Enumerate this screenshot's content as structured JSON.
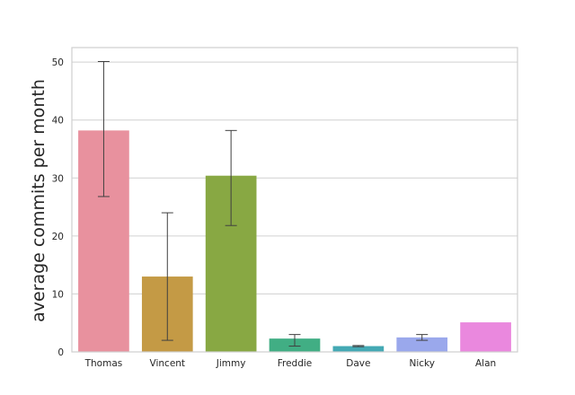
{
  "chart_data": {
    "type": "bar",
    "title": "",
    "xlabel": "",
    "ylabel": "average commits per month",
    "categories": [
      "Thomas",
      "Vincent",
      "Jimmy",
      "Freddie",
      "Dave",
      "Nicky",
      "Alan"
    ],
    "values": [
      38.2,
      13.0,
      30.4,
      2.3,
      1.0,
      2.5,
      5.1
    ],
    "error_low": [
      26.8,
      2.0,
      21.8,
      1.0,
      0.9,
      2.0,
      null
    ],
    "error_high": [
      50.1,
      24.0,
      38.2,
      3.0,
      1.1,
      3.0,
      null
    ],
    "colors": [
      "#e8919e",
      "#c49a45",
      "#88a843",
      "#41ae84",
      "#44a9b4",
      "#9aa8ec",
      "#ea88de"
    ],
    "ylim": [
      0,
      52.5
    ],
    "yticks": [
      0,
      10,
      20,
      30,
      40,
      50
    ],
    "grid": true
  }
}
